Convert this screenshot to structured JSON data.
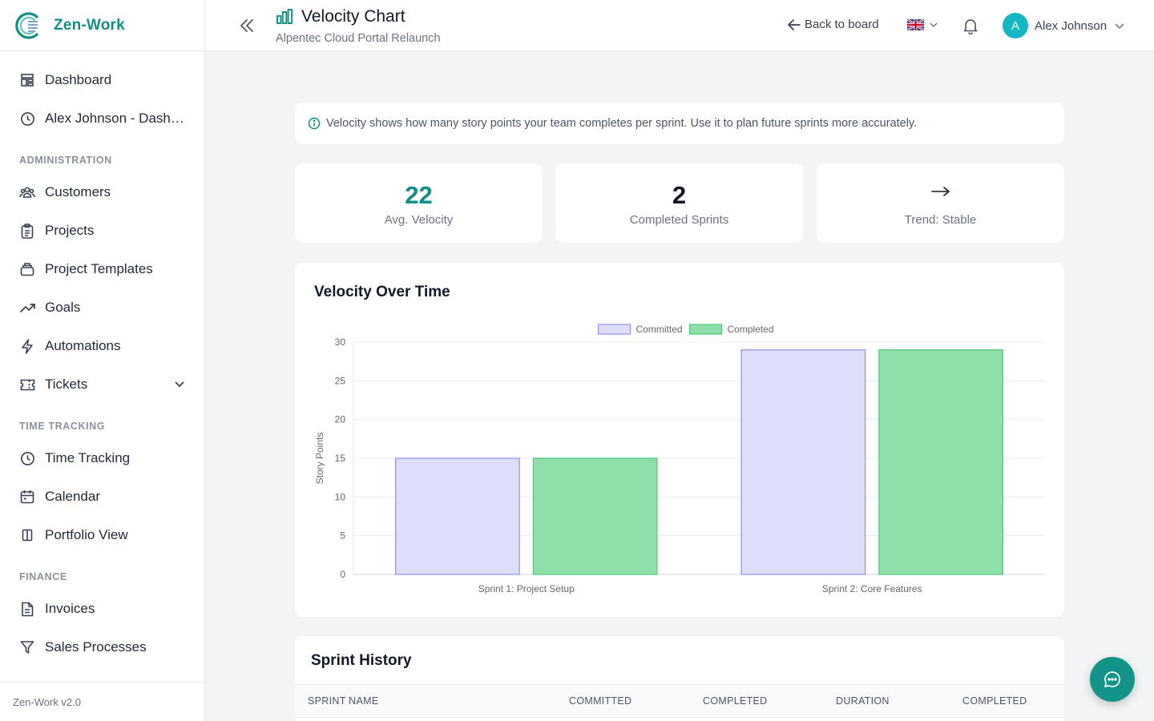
{
  "app": {
    "name": "Zen-Work",
    "version": "Zen-Work v2.0",
    "brand_color": "#0f8f86"
  },
  "sidebar": {
    "items": [
      {
        "label": "Dashboard",
        "icon": "dashboard-icon"
      },
      {
        "label": "Alex Johnson - Dashboard",
        "icon": "clock-icon"
      },
      {
        "label": "Customers",
        "icon": "users-icon"
      },
      {
        "label": "Projects",
        "icon": "clipboard-icon"
      },
      {
        "label": "Project Templates",
        "icon": "template-icon"
      },
      {
        "label": "Goals",
        "icon": "trending-up-icon"
      },
      {
        "label": "Automations",
        "icon": "bolt-icon"
      },
      {
        "label": "Tickets",
        "icon": "ticket-icon",
        "expandable": true
      },
      {
        "label": "Time Tracking",
        "icon": "clock-icon"
      },
      {
        "label": "Calendar",
        "icon": "calendar-icon"
      },
      {
        "label": "Portfolio View",
        "icon": "columns-icon"
      },
      {
        "label": "Invoices",
        "icon": "document-icon"
      },
      {
        "label": "Sales Processes",
        "icon": "funnel-icon"
      }
    ],
    "sections": {
      "administration": "ADMINISTRATION",
      "time_tracking": "TIME TRACKING",
      "finance": "FINANCE"
    }
  },
  "header": {
    "title": "Velocity Chart",
    "subtitle": "Alpentec Cloud Portal Relaunch",
    "back_label": "Back to board",
    "language": "en-GB",
    "user_name": "Alex Johnson",
    "user_initial": "A"
  },
  "info": {
    "text": "Velocity shows how many story points your team completes per sprint. Use it to plan future sprints more accurately."
  },
  "stats": {
    "avg_velocity": {
      "value": "22",
      "label": "Avg. Velocity",
      "color": "#0f8f86"
    },
    "completed_sprints": {
      "value": "2",
      "label": "Completed Sprints"
    },
    "trend": {
      "label": "Trend: Stable",
      "icon": "arrow-right-icon"
    }
  },
  "chart_data": {
    "type": "bar",
    "title": "Velocity Over Time",
    "categories": [
      "Sprint 1: Project Setup",
      "Sprint 2: Core Features"
    ],
    "series": [
      {
        "name": "Committed",
        "values": [
          15,
          29
        ],
        "fill": "#dedefa",
        "stroke": "#8f8ff0"
      },
      {
        "name": "Completed",
        "values": [
          15,
          29
        ],
        "fill": "#8ee0a8",
        "stroke": "#4cc878"
      }
    ],
    "xlabel": "",
    "ylabel": "Story Points",
    "ylim": [
      0,
      30
    ],
    "yticks": [
      0,
      5,
      10,
      15,
      20,
      25,
      30
    ],
    "grid": true,
    "legend": "top-center"
  },
  "history": {
    "title": "Sprint History",
    "columns": [
      "SPRINT NAME",
      "COMMITTED",
      "COMPLETED",
      "DURATION",
      "COMPLETED"
    ]
  }
}
